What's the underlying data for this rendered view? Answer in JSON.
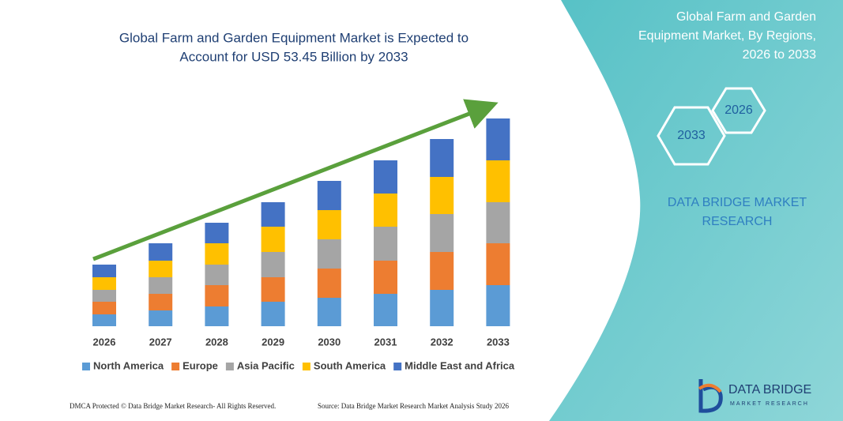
{
  "chart_data": {
    "type": "bar",
    "stacked": true,
    "title": [
      "Global Farm and Garden Equipment Market is Expected to",
      "Account for USD 53.45 Billion by 2033"
    ],
    "categories": [
      "2026",
      "2027",
      "2028",
      "2029",
      "2030",
      "2031",
      "2032",
      "2033"
    ],
    "series": [
      {
        "name": "North America",
        "color": "#5b9bd5",
        "values": [
          15,
          20,
          25,
          31,
          36,
          41,
          46,
          52
        ]
      },
      {
        "name": "Europe",
        "color": "#ed7d31",
        "values": [
          16,
          21,
          27,
          31,
          37,
          42,
          48,
          53
        ]
      },
      {
        "name": "Asia Pacific",
        "color": "#a5a5a5",
        "values": [
          15,
          21,
          26,
          32,
          37,
          43,
          48,
          52
        ]
      },
      {
        "name": "South America",
        "color": "#ffc000",
        "values": [
          16,
          21,
          27,
          32,
          37,
          42,
          47,
          53
        ]
      },
      {
        "name": "Middle East and Africa",
        "color": "#4472c4",
        "values": [
          16,
          22,
          26,
          31,
          37,
          42,
          48,
          53
        ]
      }
    ],
    "ylim": [
      0,
      270
    ]
  },
  "panel": {
    "title": [
      "Global Farm and Garden",
      "Equipment Market, By Regions,",
      "2026 to 2033"
    ],
    "hex_small": "2026",
    "hex_large": "2033",
    "brand": [
      "DATA BRIDGE MARKET",
      "RESEARCH"
    ]
  },
  "logo": {
    "name": "DATA BRIDGE",
    "tagline": "MARKET RESEARCH"
  },
  "footer": {
    "left": "DMCA Protected © Data Bridge Market Research- All Rights Reserved.",
    "right": "Source: Data Bridge Market Research Market Analysis Study 2026"
  }
}
